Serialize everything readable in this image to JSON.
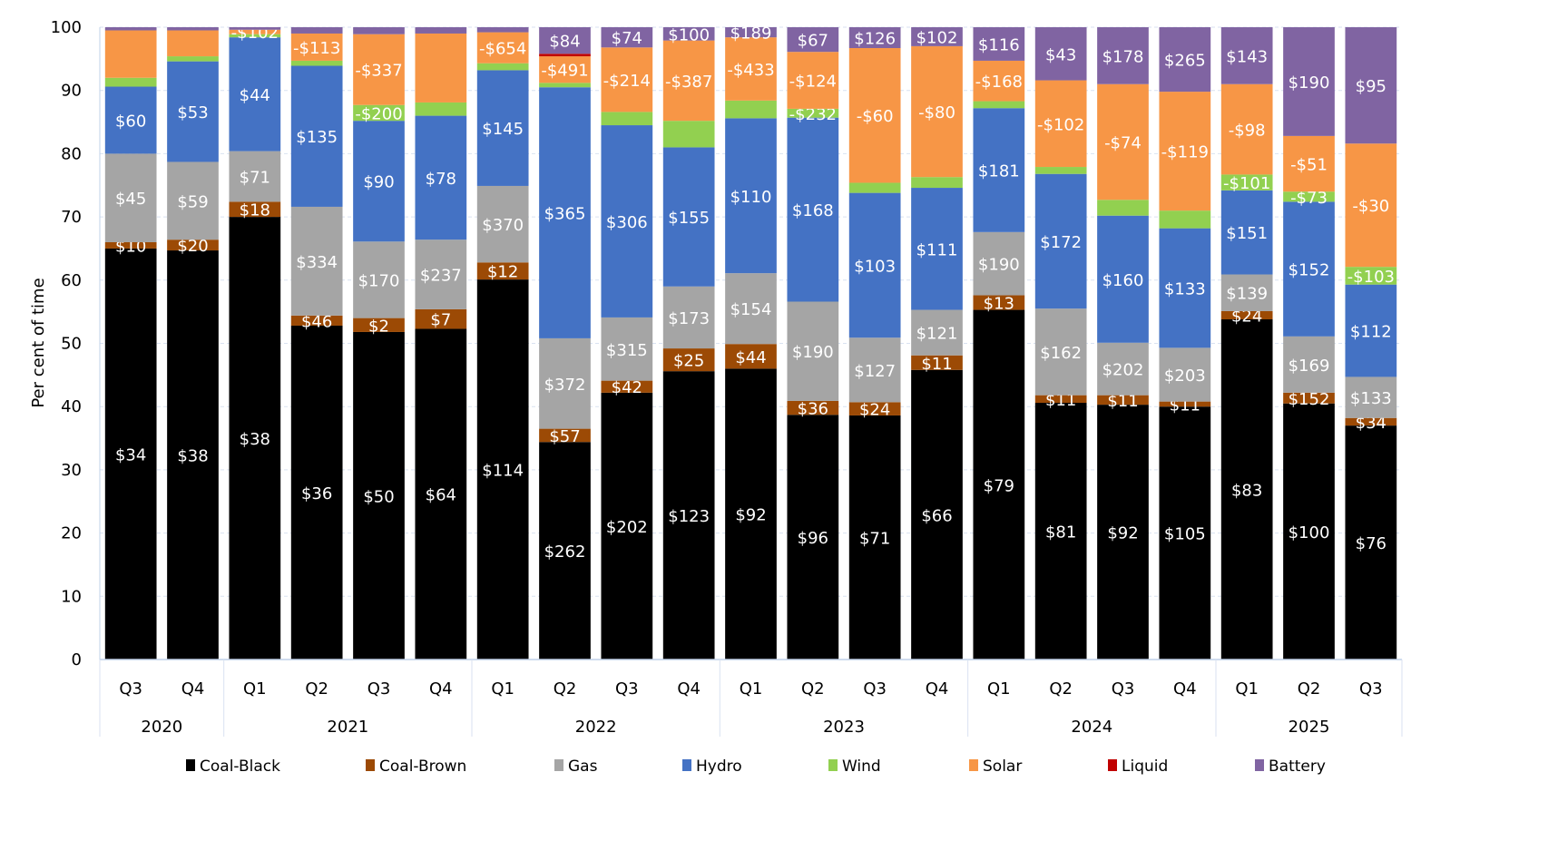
{
  "chart_data": {
    "type": "bar",
    "stacked": true,
    "title": "",
    "xlabel": "",
    "ylabel": "Per cent of time",
    "ylim": [
      0,
      100
    ],
    "yticks": [
      0,
      10,
      20,
      30,
      40,
      50,
      60,
      70,
      80,
      90,
      100
    ],
    "grid": true,
    "legend_position": "bottom",
    "categories": [
      "Q3",
      "Q4",
      "Q1",
      "Q2",
      "Q3",
      "Q4",
      "Q1",
      "Q2",
      "Q3",
      "Q4",
      "Q1",
      "Q2",
      "Q3",
      "Q4",
      "Q1",
      "Q2",
      "Q3",
      "Q4",
      "Q1",
      "Q2",
      "Q3"
    ],
    "year_groups": [
      {
        "label": "2020",
        "count": 2
      },
      {
        "label": "2021",
        "count": 4
      },
      {
        "label": "2022",
        "count": 4
      },
      {
        "label": "2023",
        "count": 4
      },
      {
        "label": "2024",
        "count": 4
      },
      {
        "label": "2025",
        "count": 3
      }
    ],
    "series": [
      {
        "name": "Coal-Black",
        "color": "#000000",
        "values": [
          65.0,
          64.7,
          70.0,
          52.8,
          51.8,
          52.3,
          60.1,
          34.4,
          42.2,
          45.6,
          46.0,
          38.7,
          38.6,
          45.8,
          55.3,
          40.6,
          40.3,
          40.0,
          53.8,
          40.5,
          37.0
        ],
        "labels": [
          "$34",
          "$38",
          "$38",
          "$36",
          "$50",
          "$64",
          "$114",
          "$262",
          "$202",
          "$123",
          "$92",
          "$96",
          "$71",
          "$66",
          "$79",
          "$81",
          "$92",
          "$105",
          "$83",
          "$100",
          "$76"
        ]
      },
      {
        "name": "Coal-Brown",
        "color": "#9C4A05",
        "values": [
          1.0,
          1.7,
          2.4,
          1.6,
          2.2,
          3.1,
          2.7,
          2.1,
          1.9,
          3.6,
          3.9,
          2.2,
          2.1,
          2.3,
          2.3,
          1.2,
          1.5,
          0.8,
          1.3,
          1.7,
          1.2
        ],
        "labels": [
          "$10",
          "$20",
          "$18",
          "$46",
          "$2",
          "$7",
          "$12",
          "$57",
          "$42",
          "$25",
          "$44",
          "$36",
          "$24",
          "$11",
          "$13",
          "$11",
          "$11",
          "$11",
          "$24",
          "$152",
          "$34"
        ]
      },
      {
        "name": "Gas",
        "color": "#A5A5A5",
        "values": [
          14.0,
          12.3,
          8.0,
          17.2,
          12.1,
          11.0,
          12.1,
          14.3,
          10.0,
          9.8,
          11.2,
          15.7,
          10.2,
          7.2,
          10.0,
          13.7,
          8.3,
          8.5,
          5.8,
          8.9,
          6.5
        ],
        "labels": [
          "$45",
          "$59",
          "$71",
          "$334",
          "$170",
          "$237",
          "$370",
          "$372",
          "$315",
          "$173",
          "$154",
          "$190",
          "$127",
          "$121",
          "$190",
          "$162",
          "$202",
          "$203",
          "$139",
          "$169",
          "$133"
        ]
      },
      {
        "name": "Hydro",
        "color": "#4472C4",
        "values": [
          10.6,
          15.9,
          18.0,
          22.3,
          19.1,
          19.6,
          18.3,
          39.7,
          30.4,
          22.0,
          24.5,
          29.1,
          22.9,
          19.3,
          19.6,
          21.3,
          20.1,
          18.9,
          13.3,
          21.3,
          14.6
        ],
        "labels": [
          "$60",
          "$53",
          "$44",
          "$135",
          "$90",
          "$78",
          "$145",
          "$365",
          "$306",
          "$155",
          "$110",
          "$168",
          "$103",
          "$111",
          "$181",
          "$172",
          "$160",
          "$133",
          "$151",
          "$152",
          "$112"
        ]
      },
      {
        "name": "Wind",
        "color": "#92D050",
        "values": [
          1.4,
          0.8,
          0.5,
          0.8,
          2.5,
          2.1,
          1.1,
          0.7,
          2.1,
          4.2,
          2.8,
          1.4,
          1.6,
          1.7,
          1.1,
          1.1,
          2.5,
          2.8,
          2.5,
          1.6,
          2.8
        ],
        "labels": [
          "",
          "",
          "",
          "",
          "-$200",
          "",
          "",
          "",
          "",
          "",
          "",
          "-$232",
          "",
          "",
          "",
          "",
          "",
          "",
          "-$101",
          "-$73",
          "-$103"
        ]
      },
      {
        "name": "Solar",
        "color": "#F79646",
        "values": [
          7.5,
          4.1,
          0.7,
          4.3,
          11.2,
          10.9,
          4.9,
          4.2,
          10.2,
          12.7,
          10.0,
          9.0,
          21.3,
          20.7,
          6.4,
          13.7,
          18.3,
          18.8,
          14.3,
          8.8,
          19.5
        ],
        "labels": [
          "",
          "",
          "-$102",
          "-$113",
          "-$337",
          "",
          "-$654",
          "-$491",
          "-$214",
          "-$387",
          "-$433",
          "-$124",
          "-$60",
          "-$80",
          "-$168",
          "-$102",
          "-$74",
          "-$119",
          "-$98",
          "-$51",
          "-$30"
        ]
      },
      {
        "name": "Liquid",
        "color": "#C00000",
        "values": [
          0,
          0,
          0,
          0,
          0,
          0,
          0,
          0.4,
          0,
          0,
          0,
          0,
          0,
          0,
          0,
          0,
          0,
          0,
          0,
          0,
          0
        ],
        "labels": [
          "",
          "",
          "",
          "",
          "",
          "",
          "",
          "",
          "",
          "",
          "",
          "",
          "",
          "",
          "",
          "",
          "",
          "",
          "",
          "",
          ""
        ]
      },
      {
        "name": "Battery",
        "color": "#8064A2",
        "values": [
          0.5,
          0.5,
          0.4,
          1.0,
          1.1,
          1.0,
          0.8,
          4.2,
          3.2,
          2.1,
          1.6,
          3.9,
          3.3,
          3.0,
          5.3,
          8.4,
          9.0,
          10.2,
          9.0,
          17.2,
          18.4
        ],
        "labels": [
          "",
          "",
          "",
          "",
          "",
          "",
          "",
          "$84",
          "$74",
          "$100",
          "$189",
          "$67",
          "$126",
          "$102",
          "$116",
          "$43",
          "$178",
          "$265",
          "$143",
          "$190",
          "$95"
        ]
      }
    ]
  }
}
